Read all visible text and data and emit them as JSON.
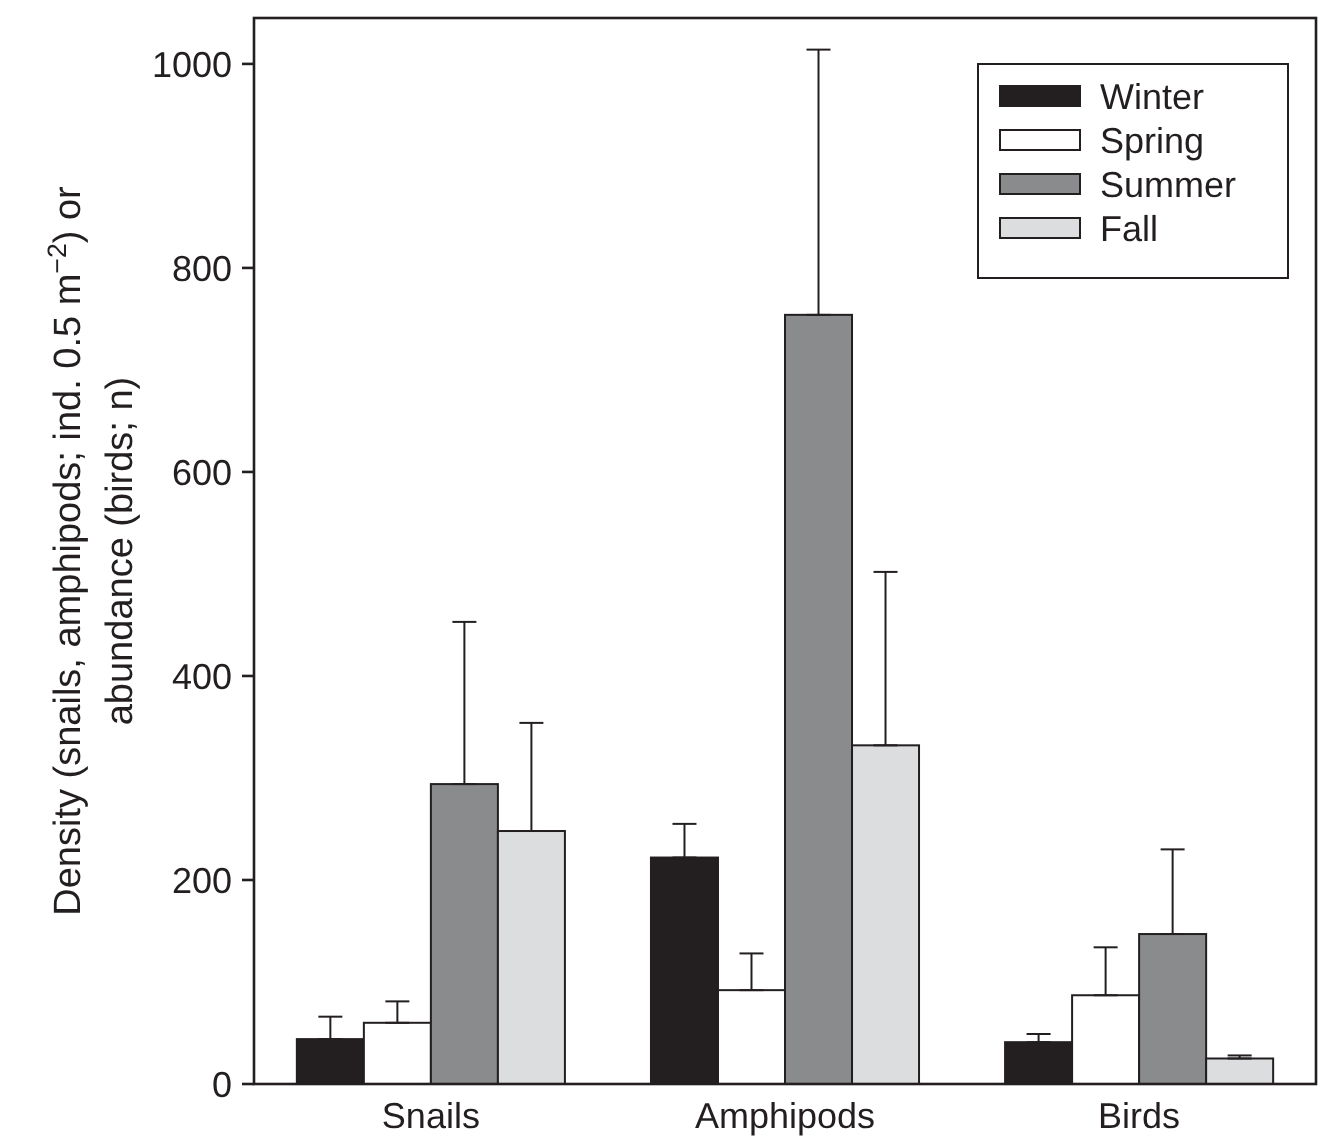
{
  "chart_data": {
    "type": "bar",
    "ylabel": "Density (snails, amphipods; ind. 0.5 m$^{−2}$) or abundance (birds; n)",
    "categories": [
      "Snails",
      "Amphipods",
      "Birds"
    ],
    "series": [
      {
        "name": "Winter",
        "color": "#231f20",
        "values": [
          44,
          222,
          41
        ],
        "errors": [
          [
            44,
            66
          ],
          [
            222,
            255
          ],
          [
            41,
            49
          ]
        ]
      },
      {
        "name": "Spring",
        "color": "#ffffff",
        "values": [
          60,
          92,
          87
        ],
        "errors": [
          [
            60,
            81
          ],
          [
            92,
            128
          ],
          [
            87,
            134
          ]
        ]
      },
      {
        "name": "Summer",
        "color": "#8a8b8d",
        "values": [
          294,
          754,
          147
        ],
        "errors": [
          [
            294,
            453
          ],
          [
            754,
            1014
          ],
          [
            147,
            230
          ]
        ]
      },
      {
        "name": "Fall",
        "color": "#dcdddf",
        "values": [
          248,
          332,
          25
        ],
        "errors": [
          [
            248,
            354
          ],
          [
            332,
            502
          ],
          [
            25,
            28
          ]
        ]
      }
    ],
    "ylim": [
      0,
      1045
    ],
    "yticks": [
      0,
      200,
      400,
      600,
      800,
      1000
    ],
    "grid": false,
    "legend": "top right"
  }
}
